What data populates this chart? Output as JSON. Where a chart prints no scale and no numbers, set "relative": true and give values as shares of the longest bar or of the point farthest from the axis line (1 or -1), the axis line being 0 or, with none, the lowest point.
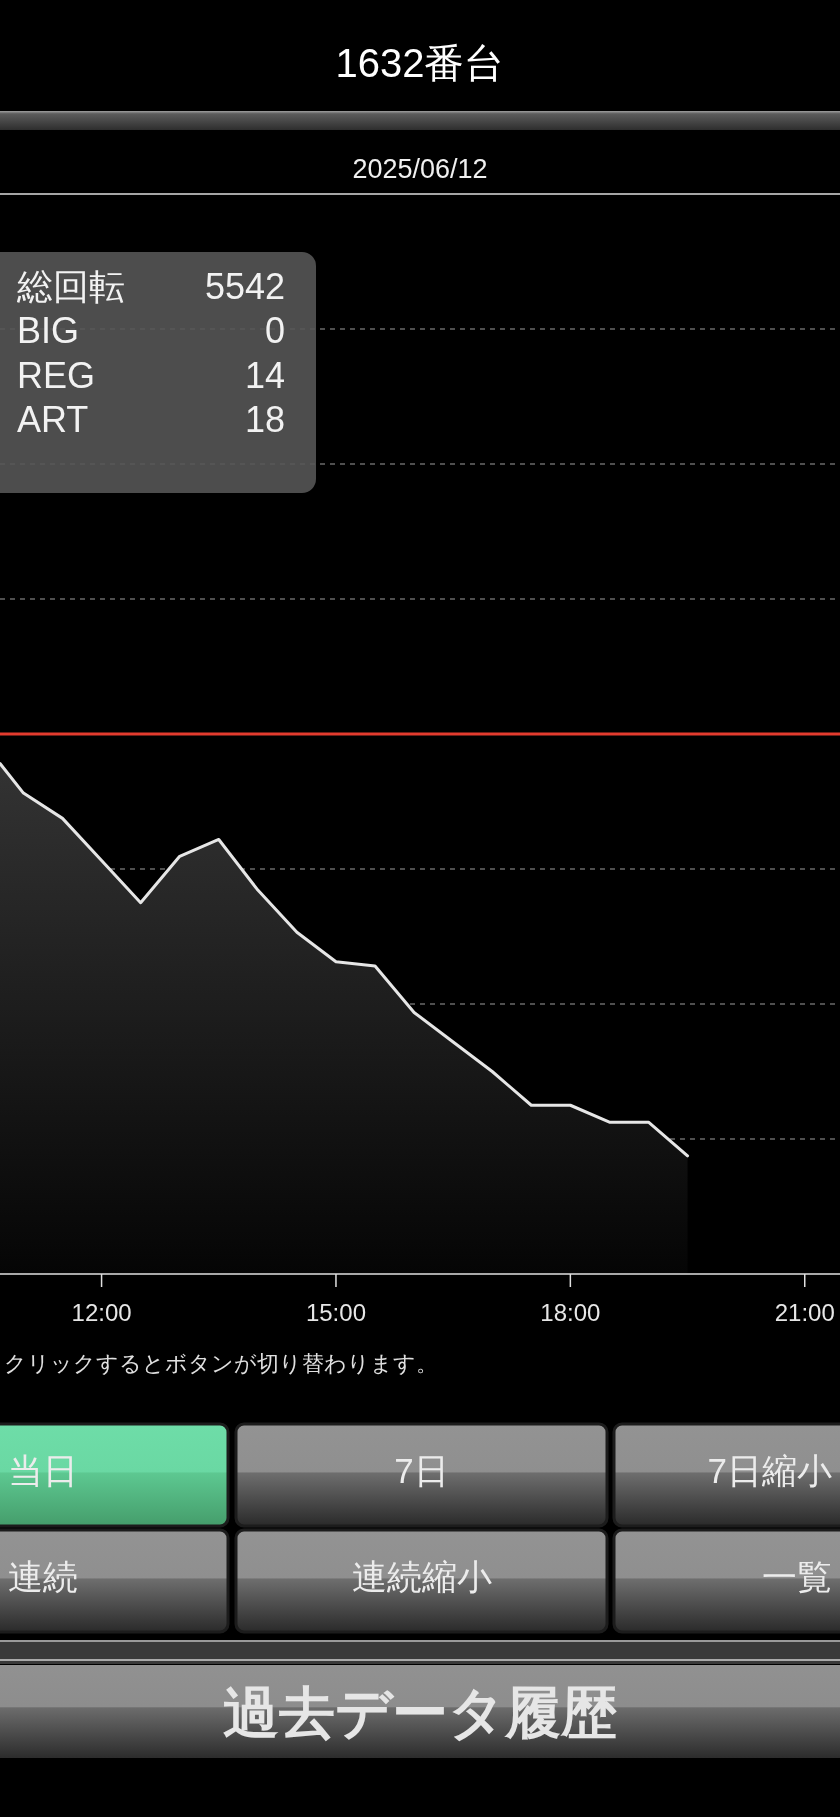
{
  "chart_data": {
    "type": "area",
    "title": "1632番台",
    "subtitle": "2025/06/12",
    "relative": true,
    "x": [
      10.7,
      11,
      11.5,
      12,
      12.5,
      13,
      13.5,
      14,
      14.5,
      15,
      15.5,
      16,
      16.5,
      17,
      17.5,
      18,
      18.5,
      19,
      19.5
    ],
    "values": [
      -0.07,
      -0.14,
      -0.2,
      -0.3,
      -0.4,
      -0.29,
      -0.25,
      -0.37,
      -0.47,
      -0.54,
      -0.55,
      -0.66,
      -0.73,
      -0.8,
      -0.88,
      -0.88,
      -0.92,
      -0.92,
      -1
    ],
    "color": "#e6e6e6",
    "line_style": "solid",
    "xlim": [
      10.7,
      21.4
    ],
    "xticks": [
      {
        "value": 12,
        "label": "12:00"
      },
      {
        "value": 15,
        "label": "15:00"
      },
      {
        "value": 18,
        "label": "18:00"
      },
      {
        "value": 21,
        "label": "21:00"
      }
    ],
    "tick_labels": "x",
    "grid": "y",
    "ref_lines": [
      {
        "axis": "y",
        "value": 0,
        "color": "#e23b2e"
      }
    ],
    "annotations": [
      "総回転",
      "5542",
      "BIG",
      "0",
      "REG",
      "14",
      "ART",
      "18",
      "クリックするとボタンが切り替わります。",
      "当日",
      "7日",
      "7日縮小",
      "連続",
      "連続縮小",
      "一覧",
      "過去データ履歴"
    ]
  }
}
